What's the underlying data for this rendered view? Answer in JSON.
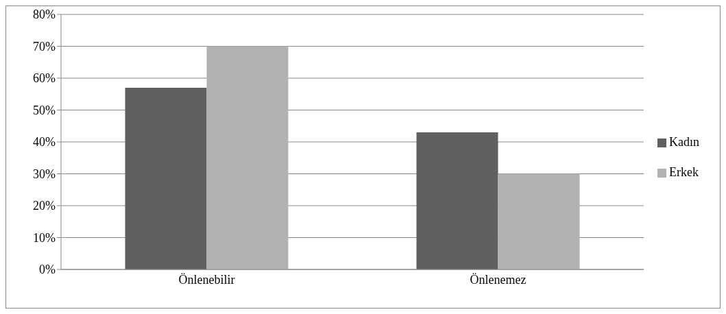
{
  "chart_data": {
    "type": "bar",
    "categories": [
      "Önlenebilir",
      "Önlenemez"
    ],
    "series": [
      {
        "name": "Kadın",
        "color": "#606060",
        "values": [
          57,
          43
        ]
      },
      {
        "name": "Erkek",
        "color": "#b2b2b2",
        "values": [
          70,
          30
        ]
      }
    ],
    "ylim": [
      0,
      80
    ],
    "yticks": [
      {
        "value": 0,
        "label": "0%"
      },
      {
        "value": 10,
        "label": "10%"
      },
      {
        "value": 20,
        "label": "20%"
      },
      {
        "value": 30,
        "label": "30%"
      },
      {
        "value": 40,
        "label": "40%"
      },
      {
        "value": 50,
        "label": "50%"
      },
      {
        "value": 60,
        "label": "60%"
      },
      {
        "value": 70,
        "label": "70%"
      },
      {
        "value": 80,
        "label": "80%"
      }
    ],
    "grid": "y",
    "legend": "right"
  }
}
